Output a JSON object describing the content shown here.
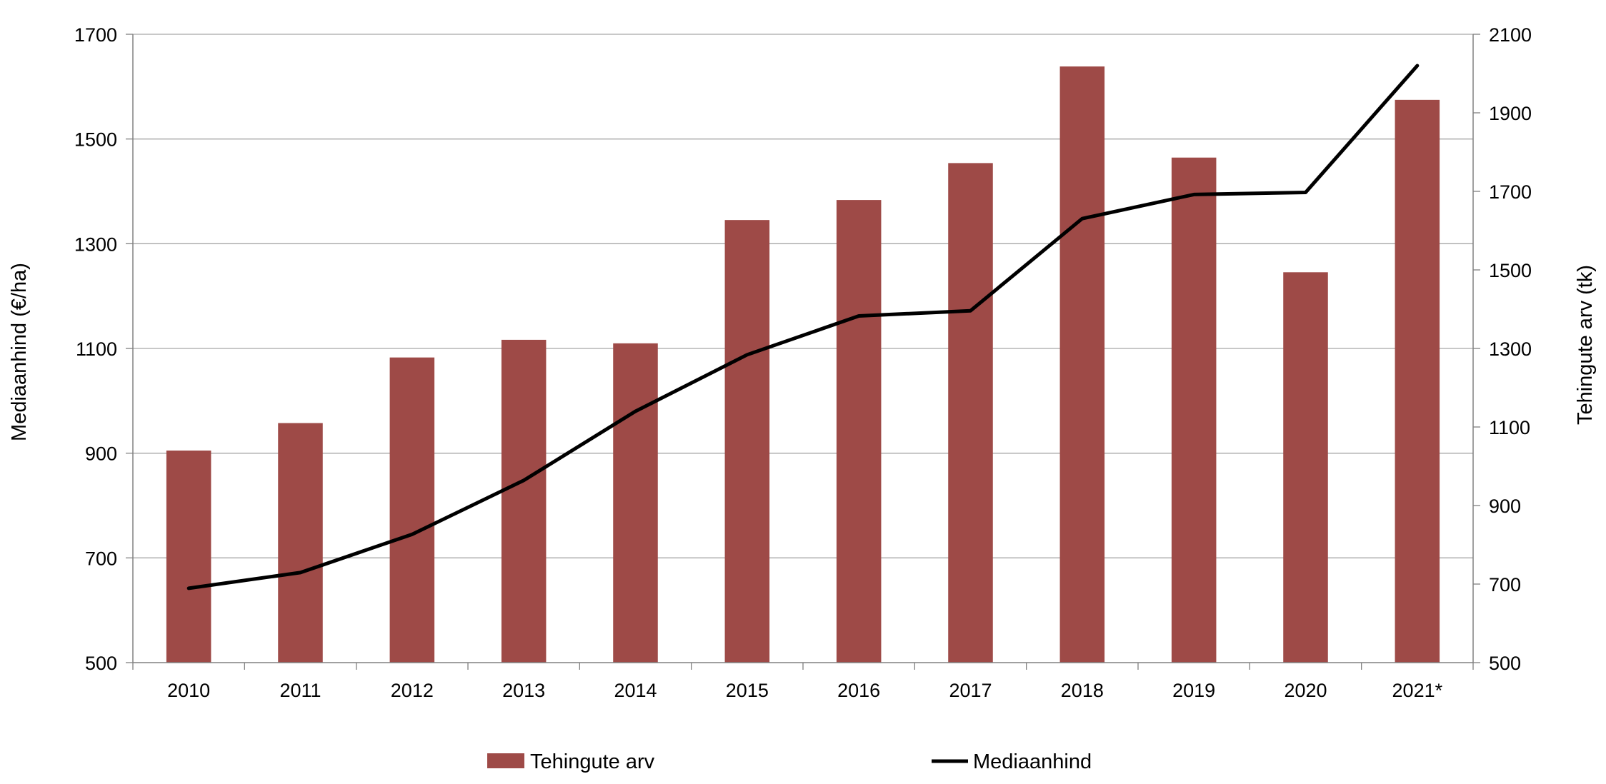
{
  "chart_data": {
    "type": "bar",
    "categories": [
      "2010",
      "2011",
      "2012",
      "2013",
      "2014",
      "2015",
      "2016",
      "2017",
      "2018",
      "2019",
      "2020",
      "2021*"
    ],
    "series": [
      {
        "name": "Tehingute arv",
        "type": "bar",
        "axis": "right",
        "color": "#9e4a47",
        "values": [
          1040,
          1110,
          1277,
          1322,
          1313,
          1627,
          1678,
          1772,
          2018,
          1786,
          1494,
          1933
        ]
      },
      {
        "name": "Mediaanhind",
        "type": "line",
        "axis": "left",
        "color": "#000000",
        "values": [
          642,
          672,
          745,
          848,
          980,
          1088,
          1162,
          1172,
          1348,
          1394,
          1398,
          1640
        ]
      }
    ],
    "title": "",
    "xlabel": "",
    "ylabel": "Mediaanhind (€/ha)",
    "y2label": "Tehingute arv (tk)",
    "ylim": [
      500,
      1700
    ],
    "yticks": [
      500,
      700,
      900,
      1100,
      1300,
      1500,
      1700
    ],
    "y2lim": [
      500,
      2100
    ],
    "y2ticks": [
      500,
      700,
      900,
      1100,
      1300,
      1500,
      1700,
      1900,
      2100
    ],
    "grid": true,
    "legend_position": "bottom"
  }
}
